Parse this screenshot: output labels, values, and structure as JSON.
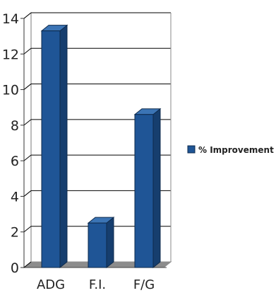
{
  "chart_data": {
    "type": "bar",
    "categories": [
      "ADG",
      "F.I.",
      "F/G"
    ],
    "series": [
      {
        "name": "% Improvement",
        "values": [
          13.3,
          2.5,
          8.6
        ]
      }
    ],
    "ylim": [
      0,
      14
    ],
    "yticks": [
      0,
      2,
      4,
      6,
      8,
      10,
      12,
      14
    ],
    "grid": true,
    "legend_position": "right",
    "style": "3d",
    "colors": {
      "bar_front": "#1F5596",
      "bar_side": "#163E6E",
      "bar_top": "#3B74B5",
      "bar_outline": "#0E2A4C",
      "grid": "#000000",
      "floor": "#8C8C8C",
      "wall_side": "#7A7A7A"
    }
  }
}
